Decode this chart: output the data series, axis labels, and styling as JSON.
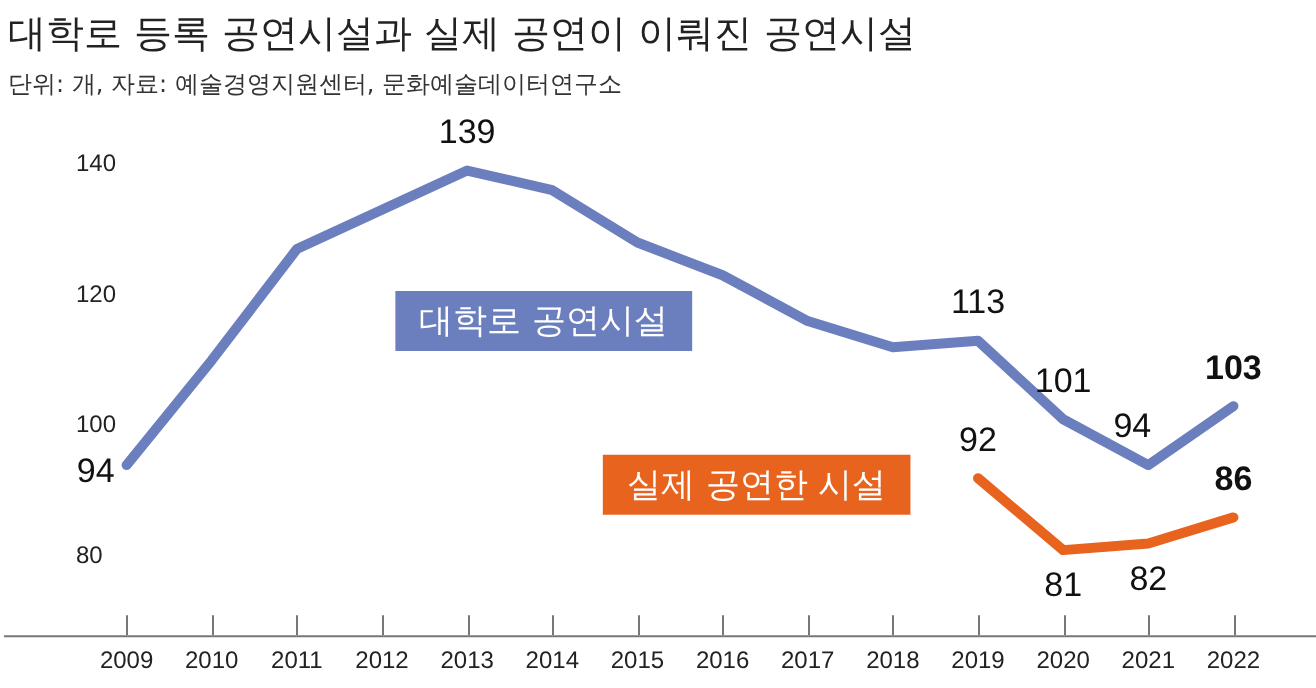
{
  "chart_data": {
    "type": "line",
    "title": "대학로 등록 공연시설과 실제 공연이 이뤄진 공연시설",
    "subtitle": "단위: 개, 자료: 예술경영지원센터, 문화예술데이터연구소",
    "categories": [
      "2009",
      "2010",
      "2011",
      "2012",
      "2013",
      "2014",
      "2015",
      "2016",
      "2017",
      "2018",
      "2019",
      "2020",
      "2021",
      "2022"
    ],
    "series": [
      {
        "name": "대학로 공연시설",
        "color": "#6b7fbf",
        "values": [
          94,
          110,
          127,
          133,
          139,
          136,
          128,
          123,
          116,
          112,
          113,
          101,
          94,
          103
        ],
        "value_labels": [
          "94",
          null,
          null,
          null,
          "139",
          null,
          null,
          null,
          null,
          null,
          "113",
          "101",
          "94",
          "103"
        ]
      },
      {
        "name": "실제 공연한 시설",
        "color": "#e8641e",
        "values": [
          null,
          null,
          null,
          null,
          null,
          null,
          null,
          null,
          null,
          null,
          92,
          81,
          82,
          86
        ],
        "value_labels": [
          null,
          null,
          null,
          null,
          null,
          null,
          null,
          null,
          null,
          null,
          "92",
          "81",
          "82",
          "86"
        ]
      }
    ],
    "ylim": [
      68,
      140
    ],
    "yticks": [
      80,
      100,
      120,
      140
    ],
    "grid": false,
    "legend": false,
    "marker": "none",
    "line_style": "solid"
  }
}
